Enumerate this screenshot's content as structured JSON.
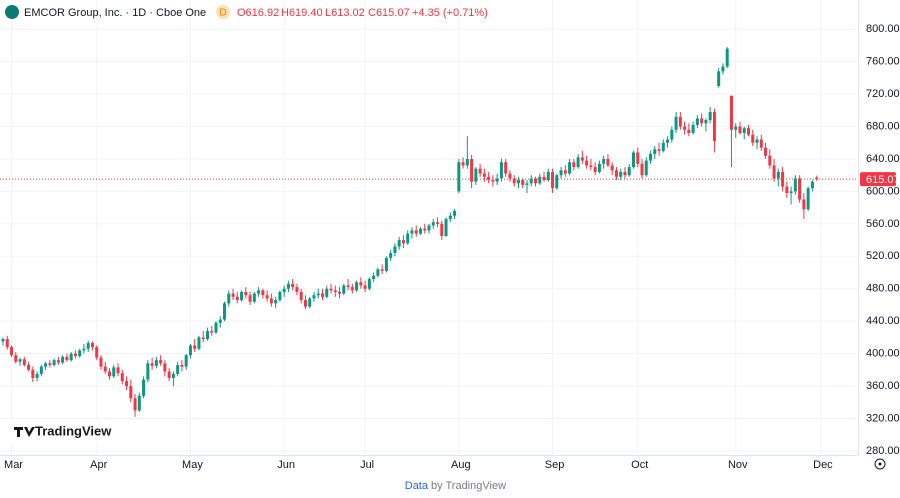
{
  "header": {
    "title": "EMCOR Group, Inc. · 1D · Cboe One",
    "badge": "D",
    "open": "O616.92",
    "high": "H619.40",
    "low": "L613.02",
    "close": "C615.07",
    "change": "+4.35 (+0.71%)"
  },
  "logo": "TradingView",
  "footer": {
    "prefix": "Data",
    "suffix": "by TradingView"
  },
  "chart_data": {
    "type": "candlestick",
    "up_color": "#089981",
    "down_color": "#f23645",
    "ylim": [
      275,
      836
    ],
    "yticks": [
      {
        "value": 280,
        "label": "280.00"
      },
      {
        "value": 320,
        "label": "320.00"
      },
      {
        "value": 360,
        "label": "360.00"
      },
      {
        "value": 400,
        "label": "400.00"
      },
      {
        "value": 440,
        "label": "440.00"
      },
      {
        "value": 480,
        "label": "480.00"
      },
      {
        "value": 520,
        "label": "520.00"
      },
      {
        "value": 560,
        "label": "560.00"
      },
      {
        "value": 600,
        "label": "600.00"
      },
      {
        "value": 640,
        "label": "640.00"
      },
      {
        "value": 680,
        "label": "680.00"
      },
      {
        "value": 720,
        "label": "720.00"
      },
      {
        "value": 760,
        "label": "760.00"
      },
      {
        "value": 800,
        "label": "800.00"
      }
    ],
    "categories": [
      null,
      null,
      "Mar",
      null,
      null,
      null,
      null,
      null,
      null,
      null,
      null,
      null,
      null,
      null,
      null,
      null,
      null,
      null,
      null,
      null,
      null,
      null,
      "Apr",
      null,
      null,
      null,
      null,
      null,
      null,
      null,
      null,
      null,
      null,
      null,
      null,
      null,
      null,
      null,
      null,
      null,
      null,
      null,
      null,
      null,
      "May",
      null,
      null,
      null,
      null,
      null,
      null,
      null,
      null,
      null,
      null,
      null,
      null,
      null,
      null,
      null,
      null,
      null,
      null,
      null,
      null,
      null,
      "Jun",
      null,
      null,
      null,
      null,
      null,
      null,
      null,
      null,
      null,
      null,
      null,
      null,
      null,
      null,
      null,
      null,
      null,
      null,
      "Jul",
      null,
      null,
      null,
      null,
      null,
      null,
      null,
      null,
      null,
      null,
      null,
      null,
      null,
      null,
      null,
      null,
      null,
      null,
      null,
      null,
      null,
      "Aug",
      null,
      null,
      null,
      null,
      null,
      null,
      null,
      null,
      null,
      null,
      null,
      null,
      null,
      null,
      null,
      null,
      null,
      null,
      null,
      null,
      null,
      "Sep",
      null,
      null,
      null,
      null,
      null,
      null,
      null,
      null,
      null,
      null,
      null,
      null,
      null,
      null,
      null,
      null,
      null,
      null,
      null,
      "Oct",
      null,
      null,
      null,
      null,
      null,
      null,
      null,
      null,
      null,
      null,
      null,
      null,
      null,
      null,
      null,
      null,
      null,
      null,
      null,
      null,
      null,
      null,
      "Nov",
      null,
      null,
      null,
      null,
      null,
      null,
      null,
      null,
      null,
      null,
      null,
      null,
      null,
      null,
      null,
      null,
      null,
      null,
      null,
      "Dec"
    ],
    "candles": [
      [
        415,
        420,
        410,
        418
      ],
      [
        418,
        422,
        405,
        408
      ],
      [
        408,
        410,
        396,
        398
      ],
      [
        398,
        402,
        388,
        390
      ],
      [
        390,
        395,
        385,
        393
      ],
      [
        393,
        396,
        384,
        386
      ],
      [
        386,
        390,
        378,
        380
      ],
      [
        380,
        384,
        365,
        370
      ],
      [
        370,
        378,
        366,
        375
      ],
      [
        375,
        386,
        372,
        384
      ],
      [
        384,
        390,
        380,
        388
      ],
      [
        388,
        392,
        383,
        386
      ],
      [
        386,
        394,
        384,
        392
      ],
      [
        392,
        396,
        386,
        389
      ],
      [
        389,
        398,
        387,
        396
      ],
      [
        396,
        400,
        390,
        392
      ],
      [
        392,
        402,
        390,
        400
      ],
      [
        400,
        404,
        394,
        397
      ],
      [
        397,
        406,
        395,
        404
      ],
      [
        404,
        412,
        400,
        406
      ],
      [
        406,
        416,
        402,
        413
      ],
      [
        413,
        415,
        404,
        408
      ],
      [
        408,
        410,
        392,
        395
      ],
      [
        395,
        398,
        380,
        384
      ],
      [
        384,
        390,
        375,
        378
      ],
      [
        378,
        382,
        368,
        372
      ],
      [
        372,
        386,
        370,
        383
      ],
      [
        383,
        388,
        372,
        376
      ],
      [
        376,
        380,
        362,
        366
      ],
      [
        366,
        372,
        355,
        360
      ],
      [
        360,
        368,
        340,
        345
      ],
      [
        345,
        350,
        322,
        330
      ],
      [
        330,
        352,
        328,
        348
      ],
      [
        348,
        372,
        345,
        368
      ],
      [
        368,
        392,
        365,
        388
      ],
      [
        388,
        395,
        380,
        385
      ],
      [
        385,
        396,
        382,
        392
      ],
      [
        392,
        398,
        385,
        388
      ],
      [
        388,
        392,
        372,
        378
      ],
      [
        378,
        382,
        366,
        370
      ],
      [
        370,
        378,
        360,
        375
      ],
      [
        375,
        390,
        372,
        386
      ],
      [
        386,
        392,
        378,
        384
      ],
      [
        384,
        400,
        380,
        398
      ],
      [
        398,
        412,
        394,
        410
      ],
      [
        410,
        418,
        402,
        406
      ],
      [
        406,
        422,
        404,
        420
      ],
      [
        420,
        428,
        414,
        418
      ],
      [
        418,
        432,
        416,
        428
      ],
      [
        428,
        434,
        422,
        426
      ],
      [
        426,
        440,
        424,
        438
      ],
      [
        438,
        446,
        432,
        442
      ],
      [
        442,
        464,
        440,
        462
      ],
      [
        462,
        478,
        458,
        474
      ],
      [
        474,
        480,
        466,
        470
      ],
      [
        470,
        476,
        462,
        466
      ],
      [
        466,
        478,
        464,
        476
      ],
      [
        476,
        482,
        468,
        472
      ],
      [
        472,
        476,
        460,
        464
      ],
      [
        464,
        476,
        462,
        474
      ],
      [
        474,
        482,
        470,
        478
      ],
      [
        478,
        480,
        468,
        472
      ],
      [
        472,
        478,
        464,
        468
      ],
      [
        468,
        474,
        458,
        462
      ],
      [
        462,
        470,
        456,
        466
      ],
      [
        466,
        478,
        464,
        476
      ],
      [
        476,
        484,
        470,
        480
      ],
      [
        480,
        490,
        476,
        486
      ],
      [
        486,
        492,
        478,
        482
      ],
      [
        482,
        486,
        472,
        476
      ],
      [
        476,
        480,
        462,
        466
      ],
      [
        466,
        472,
        455,
        458
      ],
      [
        458,
        470,
        456,
        468
      ],
      [
        468,
        476,
        464,
        472
      ],
      [
        472,
        480,
        468,
        474
      ],
      [
        474,
        480,
        466,
        470
      ],
      [
        470,
        484,
        468,
        480
      ],
      [
        480,
        486,
        474,
        478
      ],
      [
        478,
        484,
        470,
        476
      ],
      [
        476,
        482,
        468,
        474
      ],
      [
        474,
        486,
        472,
        484
      ],
      [
        484,
        492,
        478,
        482
      ],
      [
        482,
        486,
        474,
        478
      ],
      [
        478,
        490,
        476,
        488
      ],
      [
        488,
        494,
        480,
        484
      ],
      [
        484,
        490,
        476,
        480
      ],
      [
        480,
        494,
        478,
        492
      ],
      [
        492,
        500,
        488,
        496
      ],
      [
        496,
        506,
        494,
        504
      ],
      [
        504,
        510,
        498,
        502
      ],
      [
        502,
        520,
        500,
        518
      ],
      [
        518,
        528,
        514,
        524
      ],
      [
        524,
        536,
        520,
        532
      ],
      [
        532,
        544,
        528,
        540
      ],
      [
        540,
        546,
        530,
        536
      ],
      [
        536,
        552,
        534,
        548
      ],
      [
        548,
        556,
        542,
        552
      ],
      [
        552,
        558,
        544,
        548
      ],
      [
        548,
        556,
        546,
        554
      ],
      [
        554,
        560,
        548,
        552
      ],
      [
        552,
        560,
        548,
        558
      ],
      [
        558,
        566,
        554,
        562
      ],
      [
        562,
        568,
        556,
        560
      ],
      [
        560,
        564,
        540,
        545
      ],
      [
        545,
        568,
        544,
        566
      ],
      [
        566,
        574,
        562,
        570
      ],
      [
        570,
        578,
        566,
        576
      ],
      [
        600,
        640,
        598,
        636
      ],
      [
        636,
        642,
        628,
        632
      ],
      [
        632,
        668,
        628,
        640
      ],
      [
        640,
        645,
        604,
        612
      ],
      [
        612,
        630,
        608,
        628
      ],
      [
        628,
        634,
        618,
        622
      ],
      [
        622,
        628,
        612,
        618
      ],
      [
        618,
        624,
        610,
        614
      ],
      [
        614,
        620,
        606,
        612
      ],
      [
        612,
        622,
        608,
        616
      ],
      [
        616,
        640,
        612,
        636
      ],
      [
        636,
        640,
        618,
        622
      ],
      [
        622,
        626,
        612,
        616
      ],
      [
        616,
        620,
        606,
        610
      ],
      [
        610,
        618,
        604,
        614
      ],
      [
        614,
        616,
        604,
        608
      ],
      [
        608,
        614,
        598,
        610
      ],
      [
        610,
        620,
        606,
        616
      ],
      [
        616,
        618,
        606,
        610
      ],
      [
        610,
        622,
        608,
        618
      ],
      [
        618,
        624,
        612,
        614
      ],
      [
        614,
        628,
        612,
        624
      ],
      [
        624,
        628,
        598,
        604
      ],
      [
        604,
        622,
        602,
        620
      ],
      [
        620,
        630,
        616,
        626
      ],
      [
        626,
        632,
        618,
        622
      ],
      [
        622,
        640,
        620,
        636
      ],
      [
        636,
        640,
        626,
        630
      ],
      [
        630,
        646,
        628,
        642
      ],
      [
        642,
        650,
        634,
        638
      ],
      [
        638,
        644,
        628,
        632
      ],
      [
        632,
        640,
        626,
        630
      ],
      [
        630,
        636,
        620,
        624
      ],
      [
        624,
        638,
        622,
        634
      ],
      [
        634,
        644,
        628,
        640
      ],
      [
        640,
        646,
        630,
        632
      ],
      [
        632,
        636,
        620,
        626
      ],
      [
        626,
        630,
        614,
        618
      ],
      [
        618,
        628,
        614,
        624
      ],
      [
        624,
        630,
        616,
        620
      ],
      [
        620,
        634,
        618,
        630
      ],
      [
        630,
        650,
        628,
        648
      ],
      [
        648,
        654,
        630,
        634
      ],
      [
        634,
        640,
        616,
        620
      ],
      [
        620,
        642,
        618,
        638
      ],
      [
        638,
        650,
        634,
        646
      ],
      [
        646,
        656,
        640,
        652
      ],
      [
        652,
        660,
        644,
        650
      ],
      [
        650,
        664,
        648,
        660
      ],
      [
        660,
        668,
        654,
        664
      ],
      [
        664,
        680,
        660,
        676
      ],
      [
        676,
        698,
        672,
        692
      ],
      [
        692,
        698,
        676,
        680
      ],
      [
        680,
        686,
        670,
        676
      ],
      [
        676,
        684,
        668,
        672
      ],
      [
        672,
        686,
        670,
        682
      ],
      [
        682,
        694,
        678,
        690
      ],
      [
        690,
        696,
        680,
        684
      ],
      [
        684,
        690,
        674,
        688
      ],
      [
        688,
        704,
        684,
        698
      ],
      [
        698,
        702,
        648,
        662
      ],
      [
        730,
        752,
        728,
        748
      ],
      [
        748,
        758,
        744,
        754
      ],
      [
        754,
        778,
        752,
        776
      ],
      [
        718,
        718,
        630,
        676
      ],
      [
        676,
        684,
        666,
        680
      ],
      [
        680,
        686,
        670,
        672
      ],
      [
        672,
        680,
        664,
        678
      ],
      [
        678,
        682,
        668,
        670
      ],
      [
        670,
        676,
        656,
        660
      ],
      [
        660,
        668,
        652,
        664
      ],
      [
        664,
        670,
        650,
        654
      ],
      [
        654,
        660,
        640,
        644
      ],
      [
        644,
        652,
        628,
        632
      ],
      [
        632,
        640,
        612,
        616
      ],
      [
        616,
        628,
        606,
        624
      ],
      [
        624,
        630,
        600,
        606
      ],
      [
        606,
        612,
        592,
        598
      ],
      [
        598,
        606,
        584,
        600
      ],
      [
        600,
        620,
        596,
        616
      ],
      [
        616,
        620,
        586,
        590
      ],
      [
        590,
        598,
        566,
        578
      ],
      [
        578,
        606,
        576,
        604
      ],
      [
        604,
        614,
        600,
        612
      ],
      [
        616.92,
        619.4,
        613.02,
        615.07
      ],
      null
    ]
  }
}
